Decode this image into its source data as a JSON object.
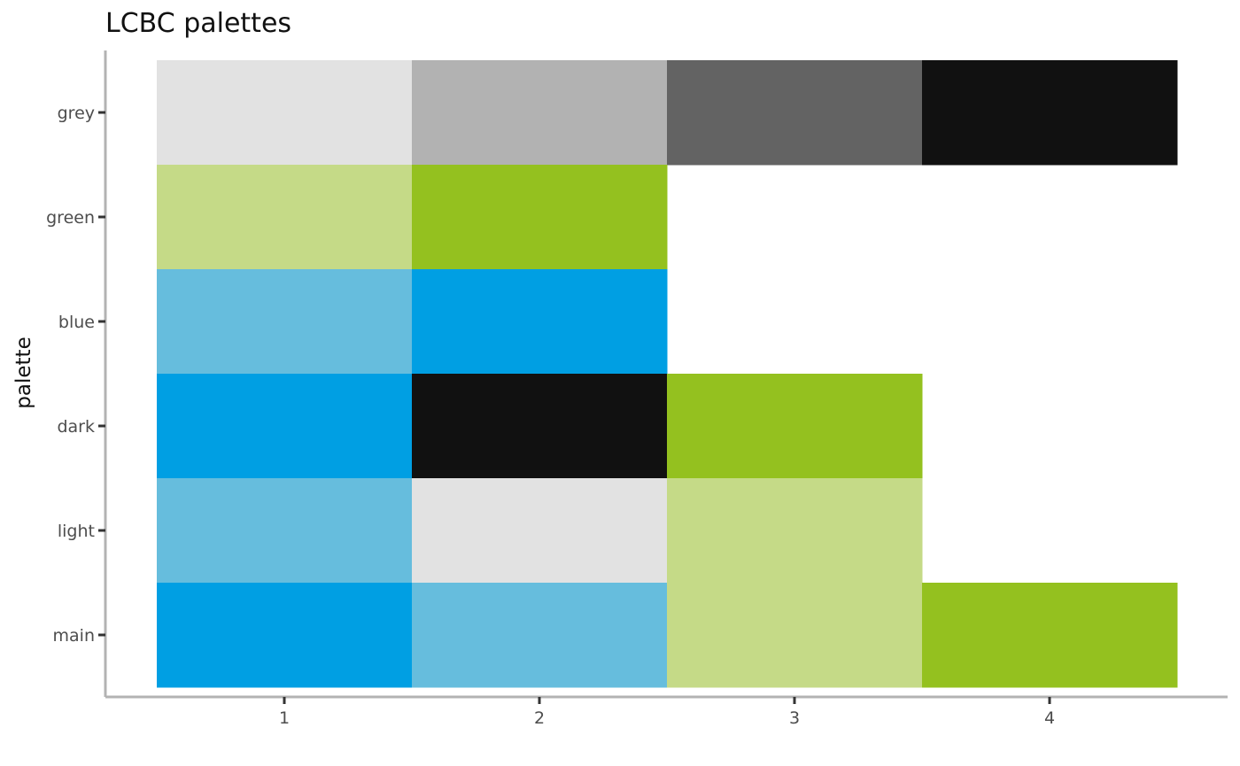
{
  "chart_data": {
    "type": "heatmap",
    "title": "LCBC palettes",
    "xlabel": "",
    "ylabel": "palette",
    "x_ticks": [
      "1",
      "2",
      "3",
      "4"
    ],
    "y_categories": [
      "main",
      "light",
      "dark",
      "blue",
      "green",
      "grey"
    ],
    "xlim": [
      0.5,
      4.5
    ],
    "grid": false,
    "legend": "none",
    "rows": [
      {
        "palette": "grey",
        "colors": [
          "#E2E2E2",
          "#B2B2B2",
          "#636363",
          "#111111"
        ]
      },
      {
        "palette": "green",
        "colors": [
          "#C5DA87",
          "#94C11F"
        ]
      },
      {
        "palette": "blue",
        "colors": [
          "#66BDDD",
          "#009FE3"
        ]
      },
      {
        "palette": "dark",
        "colors": [
          "#009FE3",
          "#111111",
          "#94C11F"
        ]
      },
      {
        "palette": "light",
        "colors": [
          "#66BDDD",
          "#E2E2E2",
          "#C5DA87"
        ]
      },
      {
        "palette": "main",
        "colors": [
          "#009FE3",
          "#66BDDD",
          "#C5DA87",
          "#94C11F"
        ]
      }
    ]
  }
}
